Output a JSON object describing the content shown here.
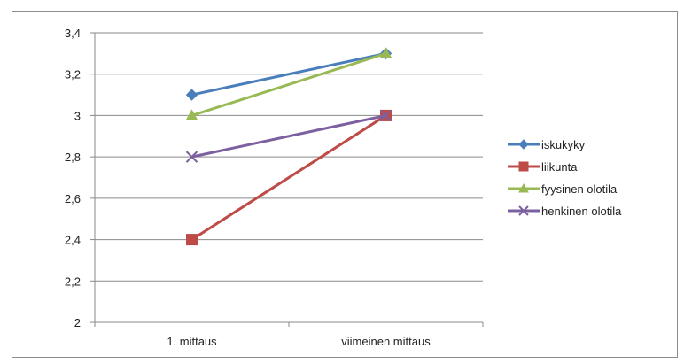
{
  "chart_data": {
    "type": "line",
    "title": "",
    "xlabel": "",
    "ylabel": "",
    "categories": [
      "1. mittaus",
      "viimeinen mittaus"
    ],
    "ylim": [
      2,
      3.4
    ],
    "yticks": [
      2,
      2.2,
      2.4,
      2.6,
      2.8,
      3,
      3.2,
      3.4
    ],
    "ytick_labels": [
      "2",
      "2,2",
      "2,4",
      "2,6",
      "2,8",
      "3",
      "3,2",
      "3,4"
    ],
    "grid": true,
    "legend_position": "right",
    "series": [
      {
        "name": "iskukyky",
        "values": [
          3.1,
          3.3
        ],
        "color": "#4a7ebb",
        "marker": "diamond"
      },
      {
        "name": "liikunta",
        "values": [
          2.4,
          3.0
        ],
        "color": "#be4b48",
        "marker": "square"
      },
      {
        "name": "fyysinen olotila",
        "values": [
          3.0,
          3.3
        ],
        "color": "#98b954",
        "marker": "triangle"
      },
      {
        "name": "henkinen olotila",
        "values": [
          2.8,
          3.0
        ],
        "color": "#7d60a0",
        "marker": "x"
      }
    ]
  }
}
